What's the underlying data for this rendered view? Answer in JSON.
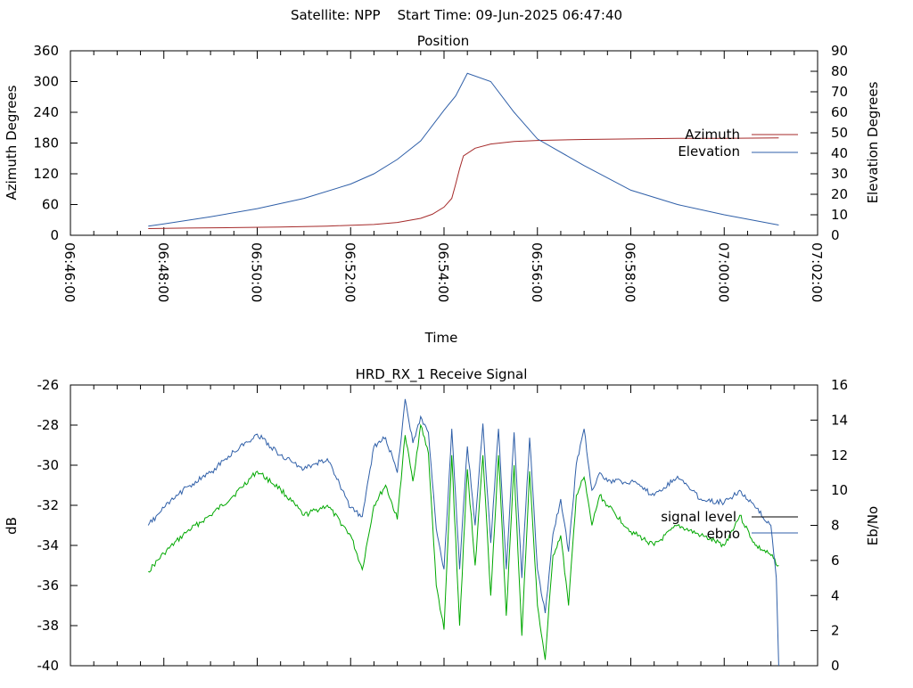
{
  "header": {
    "title": "Satellite: NPP    Start Time: 09-Jun-2025 06:47:40"
  },
  "colors": {
    "azimuth": "#a52a2a",
    "elevation": "#2f5fa8",
    "signal": "#00a800",
    "ebno": "#2f5fa8"
  },
  "chart_data": [
    {
      "type": "line",
      "title": "Position",
      "xlabel": "Time",
      "ylabel": "Azimuth Degrees",
      "y2label": "Elevation Degrees",
      "xlim": [
        "06:46:00",
        "07:02:00"
      ],
      "x_ticks": [
        "06:46:00",
        "06:48:00",
        "06:50:00",
        "06:52:00",
        "06:54:00",
        "06:56:00",
        "06:58:00",
        "07:00:00",
        "07:02:00"
      ],
      "ylim": [
        0,
        360
      ],
      "y_ticks": [
        "0",
        "60",
        "120",
        "180",
        "240",
        "300",
        "360"
      ],
      "y2lim": [
        0,
        90
      ],
      "y2_ticks": [
        "0",
        "10",
        "20",
        "30",
        "40",
        "50",
        "60",
        "70",
        "80",
        "90"
      ],
      "legend_position": "right",
      "series": [
        {
          "name": "Azimuth",
          "axis": "y",
          "x": [
            "06:47:40",
            "06:48:30",
            "06:49:30",
            "06:50:30",
            "06:51:30",
            "06:52:30",
            "06:53:00",
            "06:53:30",
            "06:53:45",
            "06:54:00",
            "06:54:10",
            "06:54:15",
            "06:54:20",
            "06:54:25",
            "06:54:40",
            "06:55:00",
            "06:55:30",
            "06:56:00",
            "06:57:00",
            "06:58:00",
            "06:59:00",
            "07:00:00",
            "07:01:10"
          ],
          "values": [
            13,
            14,
            15,
            16,
            18,
            21,
            25,
            33,
            41,
            55,
            72,
            100,
            130,
            155,
            170,
            178,
            183,
            185,
            187,
            188,
            189,
            189,
            190
          ]
        },
        {
          "name": "Elevation",
          "axis": "y2",
          "x": [
            "06:47:40",
            "06:48:00",
            "06:49:00",
            "06:50:00",
            "06:51:00",
            "06:52:00",
            "06:52:30",
            "06:53:00",
            "06:53:30",
            "06:54:00",
            "06:54:15",
            "06:54:30",
            "06:55:00",
            "06:55:30",
            "06:56:00",
            "06:57:00",
            "06:58:00",
            "06:59:00",
            "07:00:00",
            "07:01:10"
          ],
          "values": [
            4.5,
            5.5,
            9,
            13,
            18,
            25,
            30,
            37,
            46,
            61,
            68,
            79,
            75,
            60,
            47,
            34,
            22,
            15,
            10,
            5
          ]
        }
      ]
    },
    {
      "type": "line",
      "title": "HRD_RX_1 Receive Signal",
      "ylabel": "dB",
      "y2label": "Eb/No",
      "xlim": [
        "06:46:00",
        "07:02:00"
      ],
      "ylim": [
        -40,
        -26
      ],
      "y_ticks": [
        "-26",
        "-28",
        "-30",
        "-32",
        "-34",
        "-36",
        "-38",
        "-40"
      ],
      "y2lim": [
        0,
        16
      ],
      "y2_ticks": [
        "0",
        "2",
        "4",
        "6",
        "8",
        "10",
        "12",
        "14",
        "16"
      ],
      "legend_position": "right",
      "series": [
        {
          "name": "signal level",
          "axis": "y",
          "x": [
            "06:47:40",
            "06:48:00",
            "06:48:30",
            "06:49:00",
            "06:49:30",
            "06:50:00",
            "06:50:30",
            "06:51:00",
            "06:51:30",
            "06:52:00",
            "06:52:15",
            "06:52:30",
            "06:52:45",
            "06:53:00",
            "06:53:10",
            "06:53:20",
            "06:53:30",
            "06:53:40",
            "06:53:50",
            "06:54:00",
            "06:54:10",
            "06:54:20",
            "06:54:30",
            "06:54:40",
            "06:54:50",
            "06:55:00",
            "06:55:10",
            "06:55:20",
            "06:55:30",
            "06:55:40",
            "06:55:50",
            "06:56:00",
            "06:56:10",
            "06:56:20",
            "06:56:30",
            "06:56:40",
            "06:56:50",
            "06:57:00",
            "06:57:10",
            "06:57:20",
            "06:57:30",
            "06:58:00",
            "06:58:30",
            "06:59:00",
            "06:59:30",
            "07:00:00",
            "07:00:20",
            "07:00:40",
            "07:01:00",
            "07:01:10"
          ],
          "values": [
            -35.3,
            -34.4,
            -33.3,
            -32.5,
            -31.5,
            -30.3,
            -31.2,
            -32.5,
            -32.0,
            -33.5,
            -35.2,
            -32.0,
            -31.0,
            -32.7,
            -28.5,
            -30.8,
            -28.0,
            -29.4,
            -36.0,
            -38.2,
            -29.5,
            -38.0,
            -30.2,
            -35.0,
            -29.5,
            -36.5,
            -29.5,
            -37.5,
            -30.0,
            -38.5,
            -30.3,
            -37.0,
            -39.7,
            -34.5,
            -33.5,
            -37.0,
            -31.5,
            -30.6,
            -33.0,
            -31.5,
            -32.0,
            -33.3,
            -34.0,
            -33.0,
            -33.5,
            -34.0,
            -32.5,
            -34.0,
            -34.5,
            -35.0
          ]
        },
        {
          "name": "ebno",
          "axis": "y2",
          "x": [
            "06:47:40",
            "06:48:00",
            "06:48:30",
            "06:49:00",
            "06:49:30",
            "06:50:00",
            "06:50:30",
            "06:51:00",
            "06:51:30",
            "06:52:00",
            "06:52:15",
            "06:52:30",
            "06:52:45",
            "06:53:00",
            "06:53:10",
            "06:53:20",
            "06:53:30",
            "06:53:40",
            "06:53:50",
            "06:54:00",
            "06:54:10",
            "06:54:20",
            "06:54:30",
            "06:54:40",
            "06:54:50",
            "06:55:00",
            "06:55:10",
            "06:55:20",
            "06:55:30",
            "06:55:40",
            "06:55:50",
            "06:56:00",
            "06:56:10",
            "06:56:20",
            "06:56:30",
            "06:56:40",
            "06:56:50",
            "06:57:00",
            "06:57:10",
            "06:57:20",
            "06:57:30",
            "06:58:00",
            "06:58:30",
            "06:59:00",
            "06:59:30",
            "07:00:00",
            "07:00:20",
            "07:00:40",
            "07:01:00",
            "07:01:07",
            "07:01:10"
          ],
          "values": [
            8.0,
            9.0,
            10.2,
            11.0,
            12.2,
            13.2,
            12.0,
            11.2,
            11.8,
            9.0,
            8.5,
            12.5,
            13.0,
            11.0,
            15.2,
            12.7,
            14.2,
            13.3,
            7.8,
            5.5,
            13.5,
            5.5,
            12.5,
            8.0,
            13.8,
            7.0,
            13.5,
            5.5,
            13.3,
            5.0,
            13.0,
            5.5,
            3.0,
            7.5,
            9.5,
            6.5,
            11.5,
            13.5,
            10.0,
            11.0,
            10.5,
            10.5,
            9.7,
            10.8,
            9.5,
            9.3,
            10.0,
            9.0,
            8.0,
            5.0,
            0.0
          ]
        }
      ]
    }
  ]
}
